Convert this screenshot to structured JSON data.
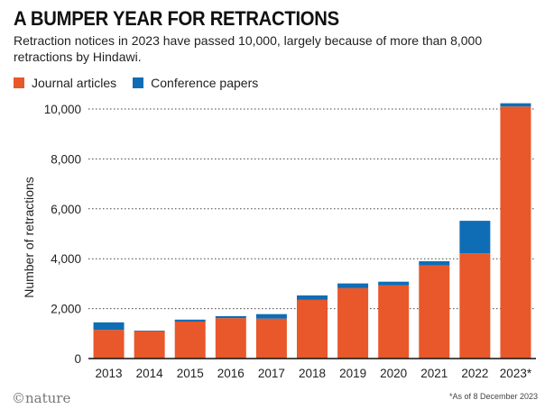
{
  "header": {
    "title": "A BUMPER YEAR FOR RETRACTIONS",
    "subtitle": "Retraction notices in 2023 have passed 10,000, largely because of more than 8,000 retractions by Hindawi."
  },
  "footer": {
    "logo_text": "©nature",
    "footnote": "*As of 8 December 2023"
  },
  "colors": {
    "journal": "#e8582a",
    "conference": "#0f6db5",
    "grid": "#444444"
  },
  "chart_data": {
    "type": "bar",
    "stacked": true,
    "title": "A BUMPER YEAR FOR RETRACTIONS",
    "xlabel": "",
    "ylabel": "Number of retractions",
    "ylim": [
      0,
      10500
    ],
    "yticks": [
      0,
      2000,
      4000,
      6000,
      8000,
      10000
    ],
    "ytick_labels": [
      "0",
      "2,000",
      "4,000",
      "6,000",
      "8,000",
      "10,000"
    ],
    "grid": "horizontal dotted",
    "legend": "top-left",
    "categories": [
      "2013",
      "2014",
      "2015",
      "2016",
      "2017",
      "2018",
      "2019",
      "2020",
      "2021",
      "2022",
      "2023*"
    ],
    "series": [
      {
        "name": "Journal articles",
        "values": [
          1150,
          1100,
          1480,
          1620,
          1600,
          2350,
          2820,
          2930,
          3730,
          4220,
          10100
        ]
      },
      {
        "name": "Conference papers",
        "values": [
          300,
          20,
          80,
          80,
          180,
          180,
          190,
          150,
          170,
          1300,
          130
        ]
      }
    ]
  }
}
